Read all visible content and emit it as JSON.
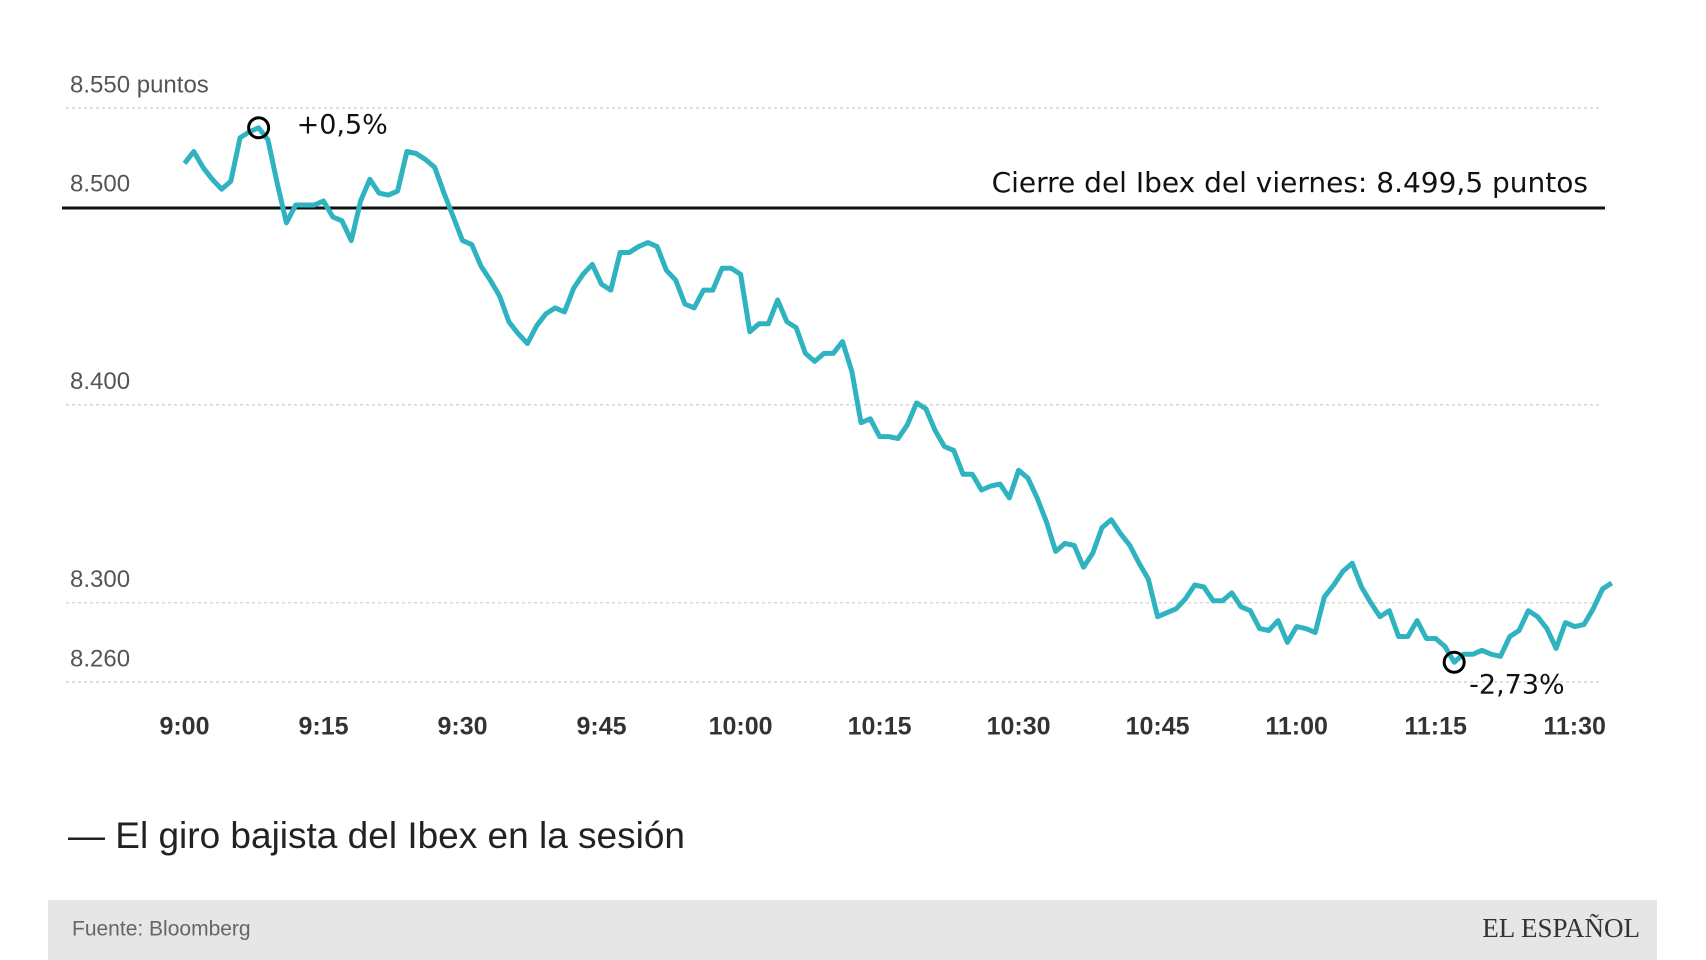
{
  "chart_data": {
    "type": "line",
    "x": [
      540,
      541,
      542,
      543,
      544,
      545,
      546,
      547,
      548,
      549,
      550,
      551,
      552,
      553,
      554,
      555,
      556,
      557,
      558,
      559,
      560,
      561,
      562,
      563,
      564,
      565,
      566,
      567,
      568,
      569,
      570,
      571,
      572,
      573,
      574,
      575,
      576,
      577,
      578,
      579,
      580,
      581,
      582,
      583,
      584,
      585,
      586,
      587,
      588,
      589,
      590,
      591,
      592,
      593,
      594,
      595,
      596,
      597,
      598,
      599,
      600,
      601,
      602,
      603,
      604,
      605,
      606,
      607,
      608,
      609,
      610,
      611,
      612,
      613,
      614,
      615,
      616,
      617,
      618,
      619,
      620,
      621,
      622,
      623,
      624,
      625,
      626,
      627,
      628,
      629,
      630,
      631,
      632,
      633,
      634,
      635,
      636,
      637,
      638,
      639,
      640,
      641,
      642,
      643,
      644,
      645,
      646,
      647,
      648,
      649,
      650,
      651,
      652,
      653,
      654,
      655,
      656,
      657,
      658,
      659,
      660,
      661,
      662,
      663,
      664,
      665,
      666,
      667,
      668,
      669,
      670,
      671,
      672,
      673,
      674,
      675,
      676,
      677,
      678,
      679,
      680,
      681,
      682,
      683,
      684,
      685,
      686,
      687,
      688,
      689,
      690,
      691,
      692,
      693,
      694
    ],
    "values": [
      8522,
      8528,
      8520,
      8514,
      8509,
      8513,
      8535,
      8538,
      8540,
      8534,
      8512,
      8492,
      8501,
      8501,
      8501,
      8503,
      8495,
      8493,
      8483,
      8503,
      8514,
      8507,
      8506,
      8508,
      8528,
      8527,
      8524,
      8520,
      8507,
      8495,
      8483,
      8481,
      8470,
      8463,
      8455,
      8442,
      8436,
      8431,
      8440,
      8446,
      8449,
      8447,
      8459,
      8466,
      8471,
      8461,
      8458,
      8477,
      8477,
      8480,
      8482,
      8480,
      8468,
      8463,
      8451,
      8449,
      8458,
      8458,
      8469,
      8469,
      8466,
      8437,
      8441,
      8441,
      8453,
      8442,
      8439,
      8426,
      8422,
      8426,
      8426,
      8432,
      8417,
      8391,
      8393,
      8384,
      8384,
      8383,
      8390,
      8401,
      8398,
      8387,
      8379,
      8377,
      8365,
      8365,
      8357,
      8359,
      8360,
      8353,
      8367,
      8363,
      8353,
      8341,
      8326,
      8330,
      8329,
      8318,
      8325,
      8338,
      8342,
      8335,
      8329,
      8320,
      8312,
      8293,
      8295,
      8297,
      8302,
      8309,
      8308,
      8301,
      8301,
      8305,
      8298,
      8296,
      8287,
      8286,
      8291,
      8280,
      8288,
      8287,
      8285,
      8303,
      8309,
      8316,
      8320,
      8308,
      8300,
      8293,
      8296,
      8283,
      8283,
      8291,
      8282,
      8282,
      8278,
      8270,
      8274,
      8274,
      8276,
      8274,
      8273,
      8283,
      8286,
      8296,
      8293,
      8287,
      8277,
      8290,
      8288,
      8289,
      8297,
      8307,
      8310
    ],
    "color": "#2fb3c0",
    "xlim": [
      527,
      695
    ],
    "xticks": [
      {
        "value": 540,
        "label": "9:00"
      },
      {
        "value": 555,
        "label": "9:15"
      },
      {
        "value": 570,
        "label": "9:30"
      },
      {
        "value": 585,
        "label": "9:45"
      },
      {
        "value": 600,
        "label": "10:00"
      },
      {
        "value": 615,
        "label": "10:15"
      },
      {
        "value": 630,
        "label": "10:30"
      },
      {
        "value": 645,
        "label": "10:45"
      },
      {
        "value": 660,
        "label": "11:00"
      },
      {
        "value": 675,
        "label": "11:15"
      },
      {
        "value": 690,
        "label": "11:30"
      }
    ],
    "ylim": [
      8260,
      8550
    ],
    "yticks": [
      {
        "value": 8550,
        "label": "8.550 puntos"
      },
      {
        "value": 8500,
        "label": "8.500"
      },
      {
        "value": 8400,
        "label": "8.400"
      },
      {
        "value": 8300,
        "label": "8.300"
      },
      {
        "value": 8260,
        "label": "8.260"
      }
    ],
    "grid": true,
    "reference_line": {
      "value": 8499.5,
      "label": "Cierre del Ibex del viernes: 8.499,5 puntos"
    },
    "annotations": [
      {
        "label": "+0,5%",
        "x": 548,
        "y": 8540
      },
      {
        "label": "-2,73%",
        "x": 677,
        "y": 8270
      }
    ],
    "caption": "— El giro bajista del Ibex en la sesión",
    "source": "Fuente: Bloomberg",
    "logo": "EL ESPAÑOL"
  }
}
